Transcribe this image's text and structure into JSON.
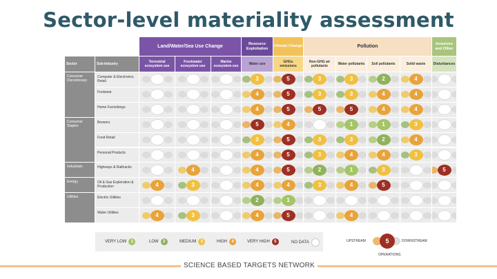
{
  "title": "Sector-level materiality assessment",
  "footer": "SCIENCE BASED TARGETS NETWORK",
  "colors": {
    "title": "#2f5968",
    "sector_col": "#8d8d8d",
    "land": "#7b54a8",
    "resource": "#6b4b99",
    "climate": "#f2c25a",
    "pollution": "#f6dfc3",
    "invasives": "#a9c47d",
    "very_low": "#a4c567",
    "low": "#8fb25a",
    "medium": "#f1c040",
    "high": "#e8a33a",
    "very_high": "#9e2f23",
    "no_data": "#ffffff"
  },
  "groups": [
    {
      "label": "Land/Water/Sea Use Change",
      "key": "land"
    },
    {
      "label": "Resource Exploitation",
      "key": "resource"
    },
    {
      "label": "Climate Change",
      "key": "climate"
    },
    {
      "label": "Pollution",
      "key": "pollution"
    },
    {
      "label": "Invasives and Other",
      "key": "invasives"
    }
  ],
  "columns": [
    "Sector",
    "Sub-Industry",
    "Terrestrial ecosystem use",
    "Freshwater ecosystem use",
    "Marine ecosystem use",
    "Water use",
    "GHGs emissions",
    "Non-GHG air pollutants",
    "Water pollutants",
    "Soil pollutants",
    "Solid waste",
    "Disturbances"
  ],
  "rows": [
    {
      "sector": "Consumer Discretionary",
      "sub": "Computer & Electronics Retail",
      "values": [
        0,
        0,
        0,
        3,
        5,
        3,
        3,
        2,
        4,
        0
      ]
    },
    {
      "sector": "",
      "sub": "Footwear",
      "values": [
        0,
        0,
        0,
        4,
        5,
        3,
        3,
        4,
        4,
        0
      ]
    },
    {
      "sector": "",
      "sub": "Home Furnishings",
      "values": [
        0,
        0,
        0,
        4,
        5,
        5,
        5,
        4,
        4,
        0
      ]
    },
    {
      "sector": "Consumer Staples",
      "sub": "Brewers",
      "values": [
        0,
        0,
        0,
        5,
        4,
        0,
        1,
        1,
        3,
        0
      ]
    },
    {
      "sector": "",
      "sub": "Food Retail",
      "values": [
        0,
        0,
        0,
        3,
        5,
        3,
        3,
        2,
        4,
        0
      ]
    },
    {
      "sector": "",
      "sub": "Personal Products",
      "values": [
        0,
        0,
        0,
        4,
        5,
        3,
        4,
        4,
        3,
        0
      ]
    },
    {
      "sector": "Industrials",
      "sub": "Highways & Railtracks",
      "values": [
        0,
        4,
        0,
        4,
        5,
        2,
        1,
        3,
        0,
        5
      ]
    },
    {
      "sector": "Energy",
      "sub": "Oil & Gas Exploration & Production",
      "values": [
        4,
        3,
        0,
        4,
        4,
        3,
        4,
        5,
        0,
        0
      ]
    },
    {
      "sector": "Utilities",
      "sub": "Electric Utilities",
      "values": [
        0,
        0,
        0,
        2,
        1,
        0,
        0,
        0,
        0,
        0
      ]
    },
    {
      "sector": "",
      "sub": "Water Utilities",
      "values": [
        4,
        3,
        0,
        4,
        5,
        0,
        4,
        0,
        0,
        0
      ]
    }
  ],
  "legend": [
    {
      "label": "VERY LOW",
      "value": "1",
      "key": "very_low"
    },
    {
      "label": "LOW",
      "value": "2",
      "key": "low"
    },
    {
      "label": "MEDIUM",
      "value": "3",
      "key": "medium"
    },
    {
      "label": "HIGH",
      "value": "4",
      "key": "high"
    },
    {
      "label": "VERY HIGH",
      "value": "5",
      "key": "very_high"
    },
    {
      "label": "NO DATA",
      "value": "",
      "key": "no_data"
    }
  ],
  "flow_legend": {
    "upstream": "UPSTREAM",
    "downstream": "DOWNSTREAM",
    "operations": "OPERATIONS",
    "sample_value": "5"
  }
}
